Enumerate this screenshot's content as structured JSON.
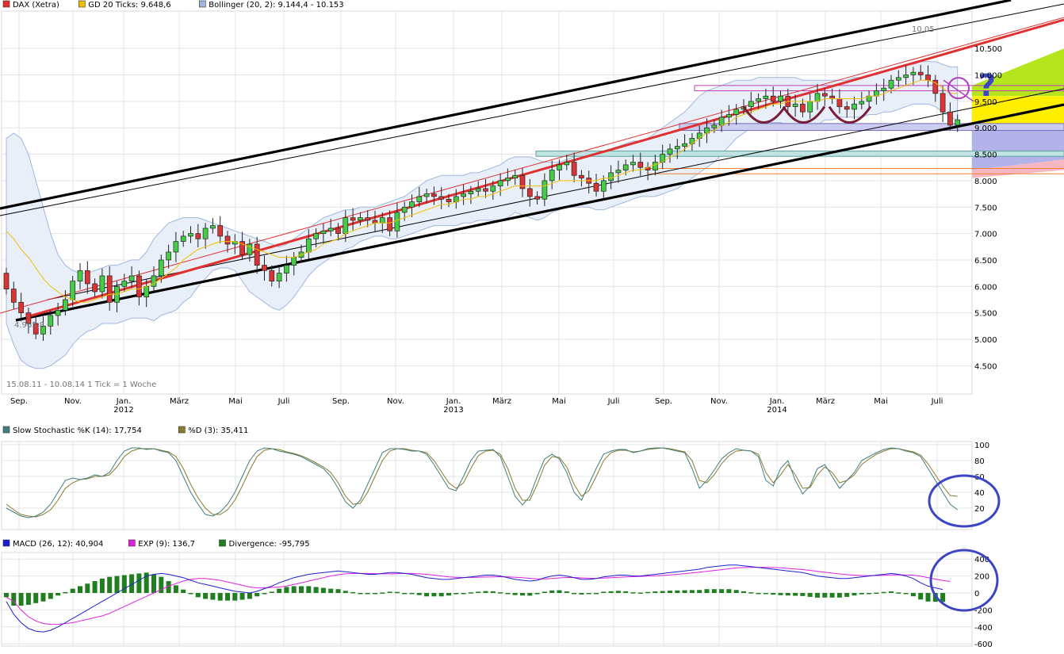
{
  "chart_data": [
    {
      "type": "candlestick",
      "legend": [
        {
          "label": "DAX (Xetra)",
          "color": "#e03030"
        },
        {
          "label": "GD 20 Ticks: 9.648,6",
          "color": "#f0c000"
        },
        {
          "label": "Bollinger (20, 2): 9.144,4 - 10.153",
          "color": "#9fb7e0"
        }
      ],
      "y_ticks": [
        "10.500",
        "10.000",
        "9.500",
        "9.000",
        "8.500",
        "8.000",
        "7.500",
        "7.000",
        "6.500",
        "6.000",
        "5.500",
        "5.000",
        "4.500"
      ],
      "ylim": [
        4000,
        10650
      ],
      "x_ticks": [
        "Sep.",
        "Nov.",
        "Jan.",
        "März",
        "Mai",
        "Juli",
        "Sep.",
        "Nov.",
        "Jan.",
        "März",
        "Mai",
        "Juli",
        "Sep.",
        "Nov.",
        "Jan.",
        "März",
        "Mai",
        "Juli"
      ],
      "year_labels": [
        "2012",
        "2013",
        "2014"
      ],
      "period_note": "15.08.11 - 10.08.14   1 Tick = 1 Woche",
      "low_label": "4.965,8",
      "high_label": "10.05",
      "question_mark": "?",
      "closes": [
        5950,
        5700,
        5500,
        5300,
        5100,
        5250,
        5450,
        5550,
        5750,
        6100,
        6300,
        6050,
        5900,
        6200,
        5700,
        6000,
        6100,
        6200,
        5800,
        6000,
        6200,
        6500,
        6650,
        6850,
        6950,
        7000,
        6900,
        7100,
        7150,
        6950,
        6800,
        6850,
        6600,
        6800,
        6400,
        6300,
        6100,
        6250,
        6400,
        6550,
        6650,
        6900,
        7000,
        7050,
        7100,
        7000,
        7300,
        7250,
        7300,
        7250,
        7200,
        7300,
        7050,
        7400,
        7500,
        7600,
        7700,
        7750,
        7700,
        7650,
        7600,
        7700,
        7750,
        7800,
        7850,
        7800,
        7900,
        8000,
        8050,
        8100,
        7850,
        7700,
        7650,
        8000,
        8200,
        8300,
        8350,
        8100,
        8050,
        7950,
        7800,
        8000,
        8150,
        8200,
        8300,
        8350,
        8250,
        8200,
        8350,
        8500,
        8600,
        8650,
        8700,
        8800,
        8900,
        9000,
        9050,
        9200,
        9250,
        9350,
        9400,
        9500,
        9550,
        9600,
        9500,
        9600,
        9400,
        9450,
        9300,
        9500,
        9650,
        9600,
        9550,
        9400,
        9350,
        9450,
        9500,
        9600,
        9700,
        9750,
        9900,
        9950,
        10000,
        10050,
        10000,
        9900,
        9650,
        9300,
        9050,
        9150
      ],
      "ma20": [
        7050,
        6900,
        6700,
        6550,
        6350,
        6150,
        6000,
        5900,
        5800,
        5750,
        5700,
        5700,
        5750,
        5800,
        5850,
        5850,
        5900,
        5950,
        5950,
        6000,
        6050,
        6150,
        6250,
        6350,
        6500,
        6600,
        6700,
        6750,
        6800,
        6850,
        6850,
        6850,
        6800,
        6750,
        6700,
        6650,
        6600,
        6550,
        6550,
        6550,
        6600,
        6650,
        6700,
        6800,
        6850,
        6900,
        7000,
        7050,
        7100,
        7150,
        7200,
        7200,
        7200,
        7250,
        7300,
        7350,
        7400,
        7450,
        7500,
        7550,
        7550,
        7600,
        7650,
        7650,
        7700,
        7700,
        7750,
        7800,
        7850,
        7900,
        7900,
        7900,
        7900,
        7900,
        7950,
        8000,
        8000,
        8000,
        8000,
        8000,
        8000,
        8050,
        8050,
        8100,
        8150,
        8200,
        8200,
        8250,
        8300,
        8350,
        8450,
        8500,
        8600,
        8700,
        8800,
        8900,
        8950,
        9050,
        9100,
        9200,
        9250,
        9300,
        9350,
        9400,
        9450,
        9450,
        9500,
        9500,
        9500,
        9500,
        9500,
        9550,
        9550,
        9550,
        9550,
        9550,
        9550,
        9600,
        9600,
        9650,
        9700,
        9750,
        9800,
        9850,
        9900,
        9900,
        9850,
        9750,
        9650,
        9650
      ],
      "boll_upper": [
        8800,
        8900,
        8800,
        8500,
        8000,
        7500,
        7000,
        6600,
        6400,
        6300,
        6250,
        6250,
        6300,
        6350,
        6400,
        6400,
        6450,
        6500,
        6500,
        6650,
        6900,
        7050,
        7200,
        7250,
        7300,
        7300,
        7300,
        7250,
        7200,
        7150,
        7100,
        7050,
        7000,
        6950,
        6900,
        6850,
        6800,
        6750,
        6800,
        6900,
        7000,
        7100,
        7200,
        7300,
        7350,
        7400,
        7450,
        7450,
        7500,
        7500,
        7500,
        7550,
        7600,
        7650,
        7700,
        7800,
        7900,
        8000,
        8050,
        8100,
        8100,
        8100,
        8100,
        8150,
        8150,
        8200,
        8250,
        8300,
        8400,
        8450,
        8450,
        8450,
        8400,
        8350,
        8350,
        8350,
        8400,
        8450,
        8500,
        8500,
        8500,
        8550,
        8600,
        8650,
        8700,
        8750,
        8750,
        8800,
        8900,
        9000,
        9100,
        9200,
        9300,
        9450,
        9600,
        9700,
        9750,
        9800,
        9850,
        9900,
        9900,
        9900,
        9950,
        9950,
        9950,
        9950,
        9950,
        9950,
        9900,
        9900,
        9900,
        9900,
        9900,
        9900,
        9900,
        9950,
        9950,
        10000,
        10000,
        10050,
        10100,
        10150,
        10200,
        10200,
        10250,
        10250,
        10250,
        10200,
        10150,
        10153
      ],
      "boll_lower": [
        5300,
        4900,
        4600,
        4500,
        4450,
        4450,
        4500,
        4600,
        4700,
        4900,
        5050,
        5150,
        5200,
        5300,
        5300,
        5300,
        5350,
        5400,
        5400,
        5400,
        5350,
        5450,
        5500,
        5550,
        5700,
        5800,
        6000,
        6150,
        6300,
        6350,
        6350,
        6300,
        6100,
        5900,
        5800,
        5700,
        5600,
        5550,
        5650,
        5800,
        6000,
        6200,
        6350,
        6450,
        6550,
        6600,
        6700,
        6750,
        6850,
        6900,
        6950,
        6950,
        6900,
        6900,
        6950,
        7000,
        7050,
        7100,
        7150,
        7150,
        7150,
        7150,
        7200,
        7200,
        7250,
        7250,
        7250,
        7250,
        7300,
        7400,
        7350,
        7300,
        7250,
        7300,
        7400,
        7450,
        7500,
        7500,
        7500,
        7500,
        7450,
        7450,
        7500,
        7550,
        7600,
        7650,
        7700,
        7700,
        7700,
        7750,
        7800,
        7850,
        7950,
        8050,
        8150,
        8250,
        8350,
        8500,
        8650,
        8800,
        8900,
        9000,
        9100,
        9100,
        9100,
        9100,
        9050,
        9050,
        9050,
        9050,
        9050,
        9150,
        9150,
        9200,
        9200,
        9200,
        9200,
        9250,
        9250,
        9300,
        9300,
        9350,
        9400,
        9450,
        9450,
        9450,
        9400,
        9300,
        9200,
        9144
      ]
    },
    {
      "type": "line",
      "legend": [
        {
          "label": "Slow Stochastic %K (14): 17,754",
          "color": "#3f7f7f"
        },
        {
          "label": "%D (3): 35,411",
          "color": "#8a7a2a"
        }
      ],
      "y_ticks": [
        "100",
        "80",
        "60",
        "40",
        "20"
      ],
      "ylim": [
        0,
        100
      ],
      "k": [
        20,
        15,
        10,
        8,
        10,
        15,
        25,
        40,
        55,
        58,
        56,
        58,
        62,
        60,
        65,
        80,
        92,
        96,
        96,
        94,
        95,
        92,
        90,
        80,
        60,
        40,
        25,
        12,
        10,
        15,
        25,
        40,
        60,
        80,
        92,
        96,
        95,
        92,
        90,
        88,
        85,
        80,
        75,
        70,
        60,
        45,
        28,
        20,
        30,
        50,
        70,
        90,
        95,
        95,
        94,
        92,
        92,
        88,
        75,
        60,
        45,
        42,
        60,
        80,
        92,
        93,
        94,
        85,
        60,
        35,
        24,
        35,
        60,
        82,
        88,
        82,
        65,
        40,
        30,
        50,
        70,
        88,
        92,
        94,
        94,
        90,
        92,
        95,
        96,
        96,
        94,
        92,
        90,
        70,
        45,
        55,
        68,
        82,
        90,
        95,
        93,
        92,
        85,
        55,
        48,
        70,
        80,
        55,
        38,
        48,
        70,
        75,
        60,
        45,
        55,
        65,
        80,
        85,
        90,
        94,
        96,
        95,
        92,
        90,
        85,
        70,
        55,
        40,
        25,
        18
      ],
      "d": [
        25,
        18,
        12,
        10,
        9,
        12,
        18,
        30,
        45,
        52,
        56,
        57,
        60,
        60,
        62,
        72,
        85,
        92,
        95,
        95,
        95,
        93,
        91,
        85,
        70,
        50,
        33,
        20,
        12,
        12,
        18,
        30,
        48,
        68,
        85,
        93,
        95,
        94,
        91,
        89,
        86,
        82,
        77,
        72,
        65,
        52,
        35,
        25,
        26,
        40,
        60,
        80,
        92,
        95,
        95,
        93,
        92,
        90,
        80,
        66,
        52,
        45,
        52,
        70,
        86,
        92,
        93,
        88,
        70,
        45,
        30,
        30,
        50,
        74,
        85,
        84,
        72,
        50,
        35,
        42,
        60,
        80,
        90,
        93,
        93,
        91,
        92,
        94,
        95,
        96,
        95,
        93,
        91,
        80,
        55,
        52,
        62,
        76,
        86,
        92,
        93,
        92,
        88,
        65,
        52,
        62,
        75,
        62,
        45,
        46,
        62,
        72,
        65,
        52,
        55,
        62,
        75,
        82,
        88,
        92,
        95,
        95,
        93,
        91,
        87,
        76,
        62,
        48,
        36,
        35
      ]
    },
    {
      "type": "bar_line",
      "legend": [
        {
          "label": "MACD (26, 12): 40,904",
          "color": "#1f1fcf"
        },
        {
          "label": "EXP (9): 136,7",
          "color": "#e020e0"
        },
        {
          "label": "Divergence: -95,795",
          "color": "#1f7f1f"
        }
      ],
      "y_ticks": [
        "400",
        "200",
        "0",
        "-200",
        "-400",
        "-600"
      ],
      "ylim": [
        -600,
        460
      ],
      "macd": [
        -100,
        -250,
        -350,
        -420,
        -450,
        -460,
        -440,
        -400,
        -350,
        -300,
        -250,
        -200,
        -150,
        -100,
        -50,
        0,
        50,
        100,
        150,
        200,
        220,
        230,
        220,
        200,
        180,
        150,
        120,
        100,
        80,
        60,
        40,
        20,
        10,
        0,
        20,
        50,
        80,
        120,
        150,
        180,
        200,
        220,
        230,
        240,
        250,
        260,
        250,
        240,
        230,
        220,
        220,
        230,
        240,
        240,
        230,
        220,
        200,
        180,
        170,
        160,
        160,
        170,
        180,
        190,
        200,
        210,
        210,
        200,
        180,
        160,
        150,
        140,
        150,
        180,
        200,
        210,
        200,
        180,
        160,
        160,
        170,
        190,
        200,
        210,
        210,
        200,
        200,
        210,
        220,
        230,
        240,
        250,
        260,
        270,
        280,
        300,
        310,
        320,
        330,
        330,
        320,
        310,
        300,
        290,
        280,
        270,
        260,
        250,
        240,
        220,
        200,
        190,
        180,
        170,
        170,
        180,
        190,
        200,
        210,
        220,
        230,
        220,
        200,
        170,
        120,
        80,
        60,
        40.9
      ],
      "exp": [
        -50,
        -100,
        -200,
        -280,
        -330,
        -360,
        -370,
        -370,
        -360,
        -350,
        -330,
        -310,
        -290,
        -270,
        -240,
        -200,
        -160,
        -120,
        -80,
        -40,
        0,
        40,
        80,
        110,
        140,
        160,
        170,
        170,
        160,
        150,
        130,
        110,
        90,
        70,
        60,
        60,
        65,
        70,
        80,
        100,
        120,
        140,
        160,
        180,
        200,
        215,
        225,
        230,
        230,
        230,
        228,
        225,
        225,
        228,
        230,
        230,
        225,
        220,
        210,
        200,
        190,
        185,
        182,
        183,
        185,
        188,
        190,
        192,
        190,
        185,
        180,
        172,
        165,
        165,
        170,
        178,
        182,
        182,
        178,
        174,
        172,
        175,
        180,
        185,
        190,
        192,
        195,
        198,
        202,
        207,
        213,
        220,
        228,
        236,
        245,
        255,
        265,
        275,
        285,
        295,
        300,
        302,
        303,
        302,
        300,
        296,
        290,
        283,
        276,
        266,
        255,
        244,
        234,
        224,
        216,
        210,
        206,
        205,
        206,
        208,
        212,
        214,
        213,
        209,
        197,
        181,
        164,
        147,
        136.7
      ]
    }
  ]
}
